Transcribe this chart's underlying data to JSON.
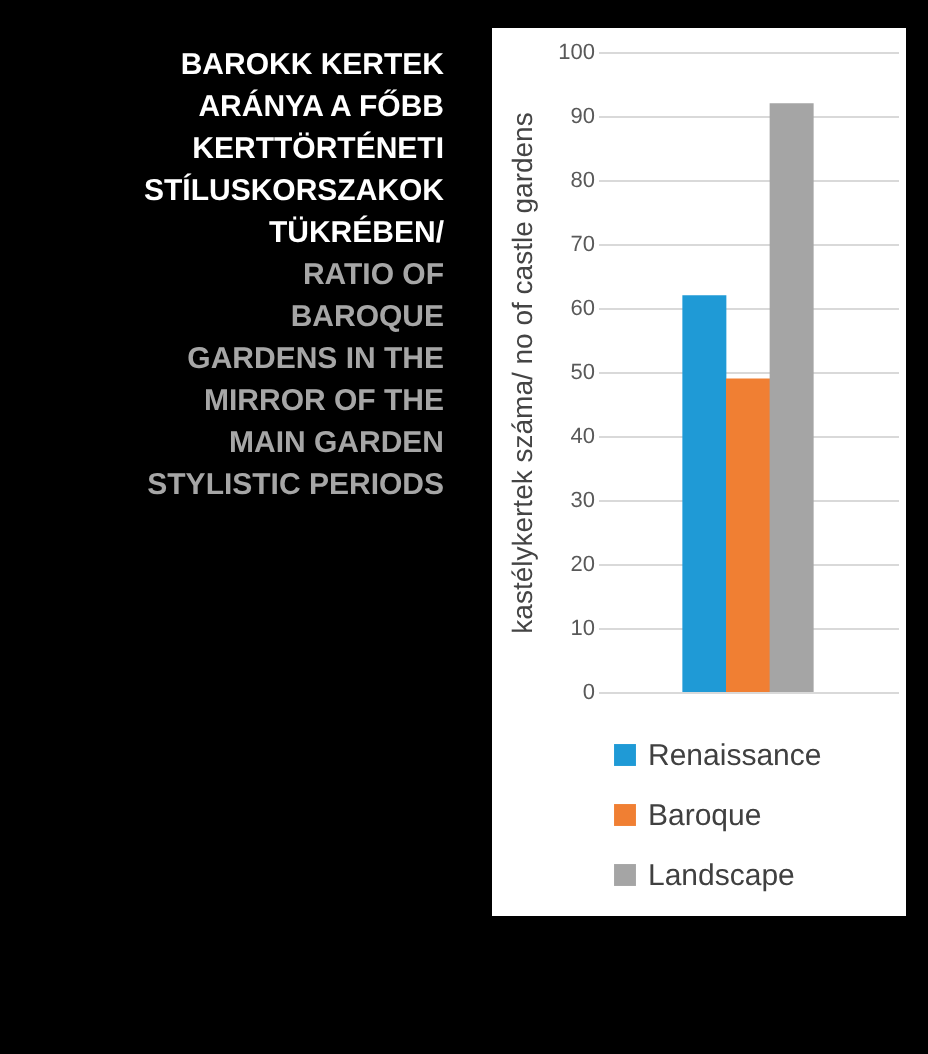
{
  "chart_data": {
    "type": "bar",
    "title": "BAROKK KERTEK ARÁNYA A FŐBB KERTTÖRTÉNETI STÍLUSKORSZAKOK TÜKRÉBEN/",
    "subtitle": "RATIO OF BAROQUE GARDENS IN THE MIRROR OF THE MAIN GARDEN STYLISTIC PERIODS",
    "ylabel": "kastélykertek száma/ no of castle gardens",
    "categories": [
      null
    ],
    "series": [
      {
        "name": "Renaissance",
        "color": "#1f9ad6",
        "values": [
          62
        ]
      },
      {
        "name": "Baroque",
        "color": "#f07f33",
        "values": [
          49
        ]
      },
      {
        "name": "Landscape",
        "color": "#a5a5a5",
        "values": [
          92
        ]
      }
    ],
    "ylim": [
      0,
      100
    ],
    "yticks": [
      0,
      10,
      20,
      30,
      40,
      50,
      60,
      70,
      80,
      90,
      100
    ],
    "grid": "y",
    "legend": "bottom",
    "tick_labels": "y"
  }
}
